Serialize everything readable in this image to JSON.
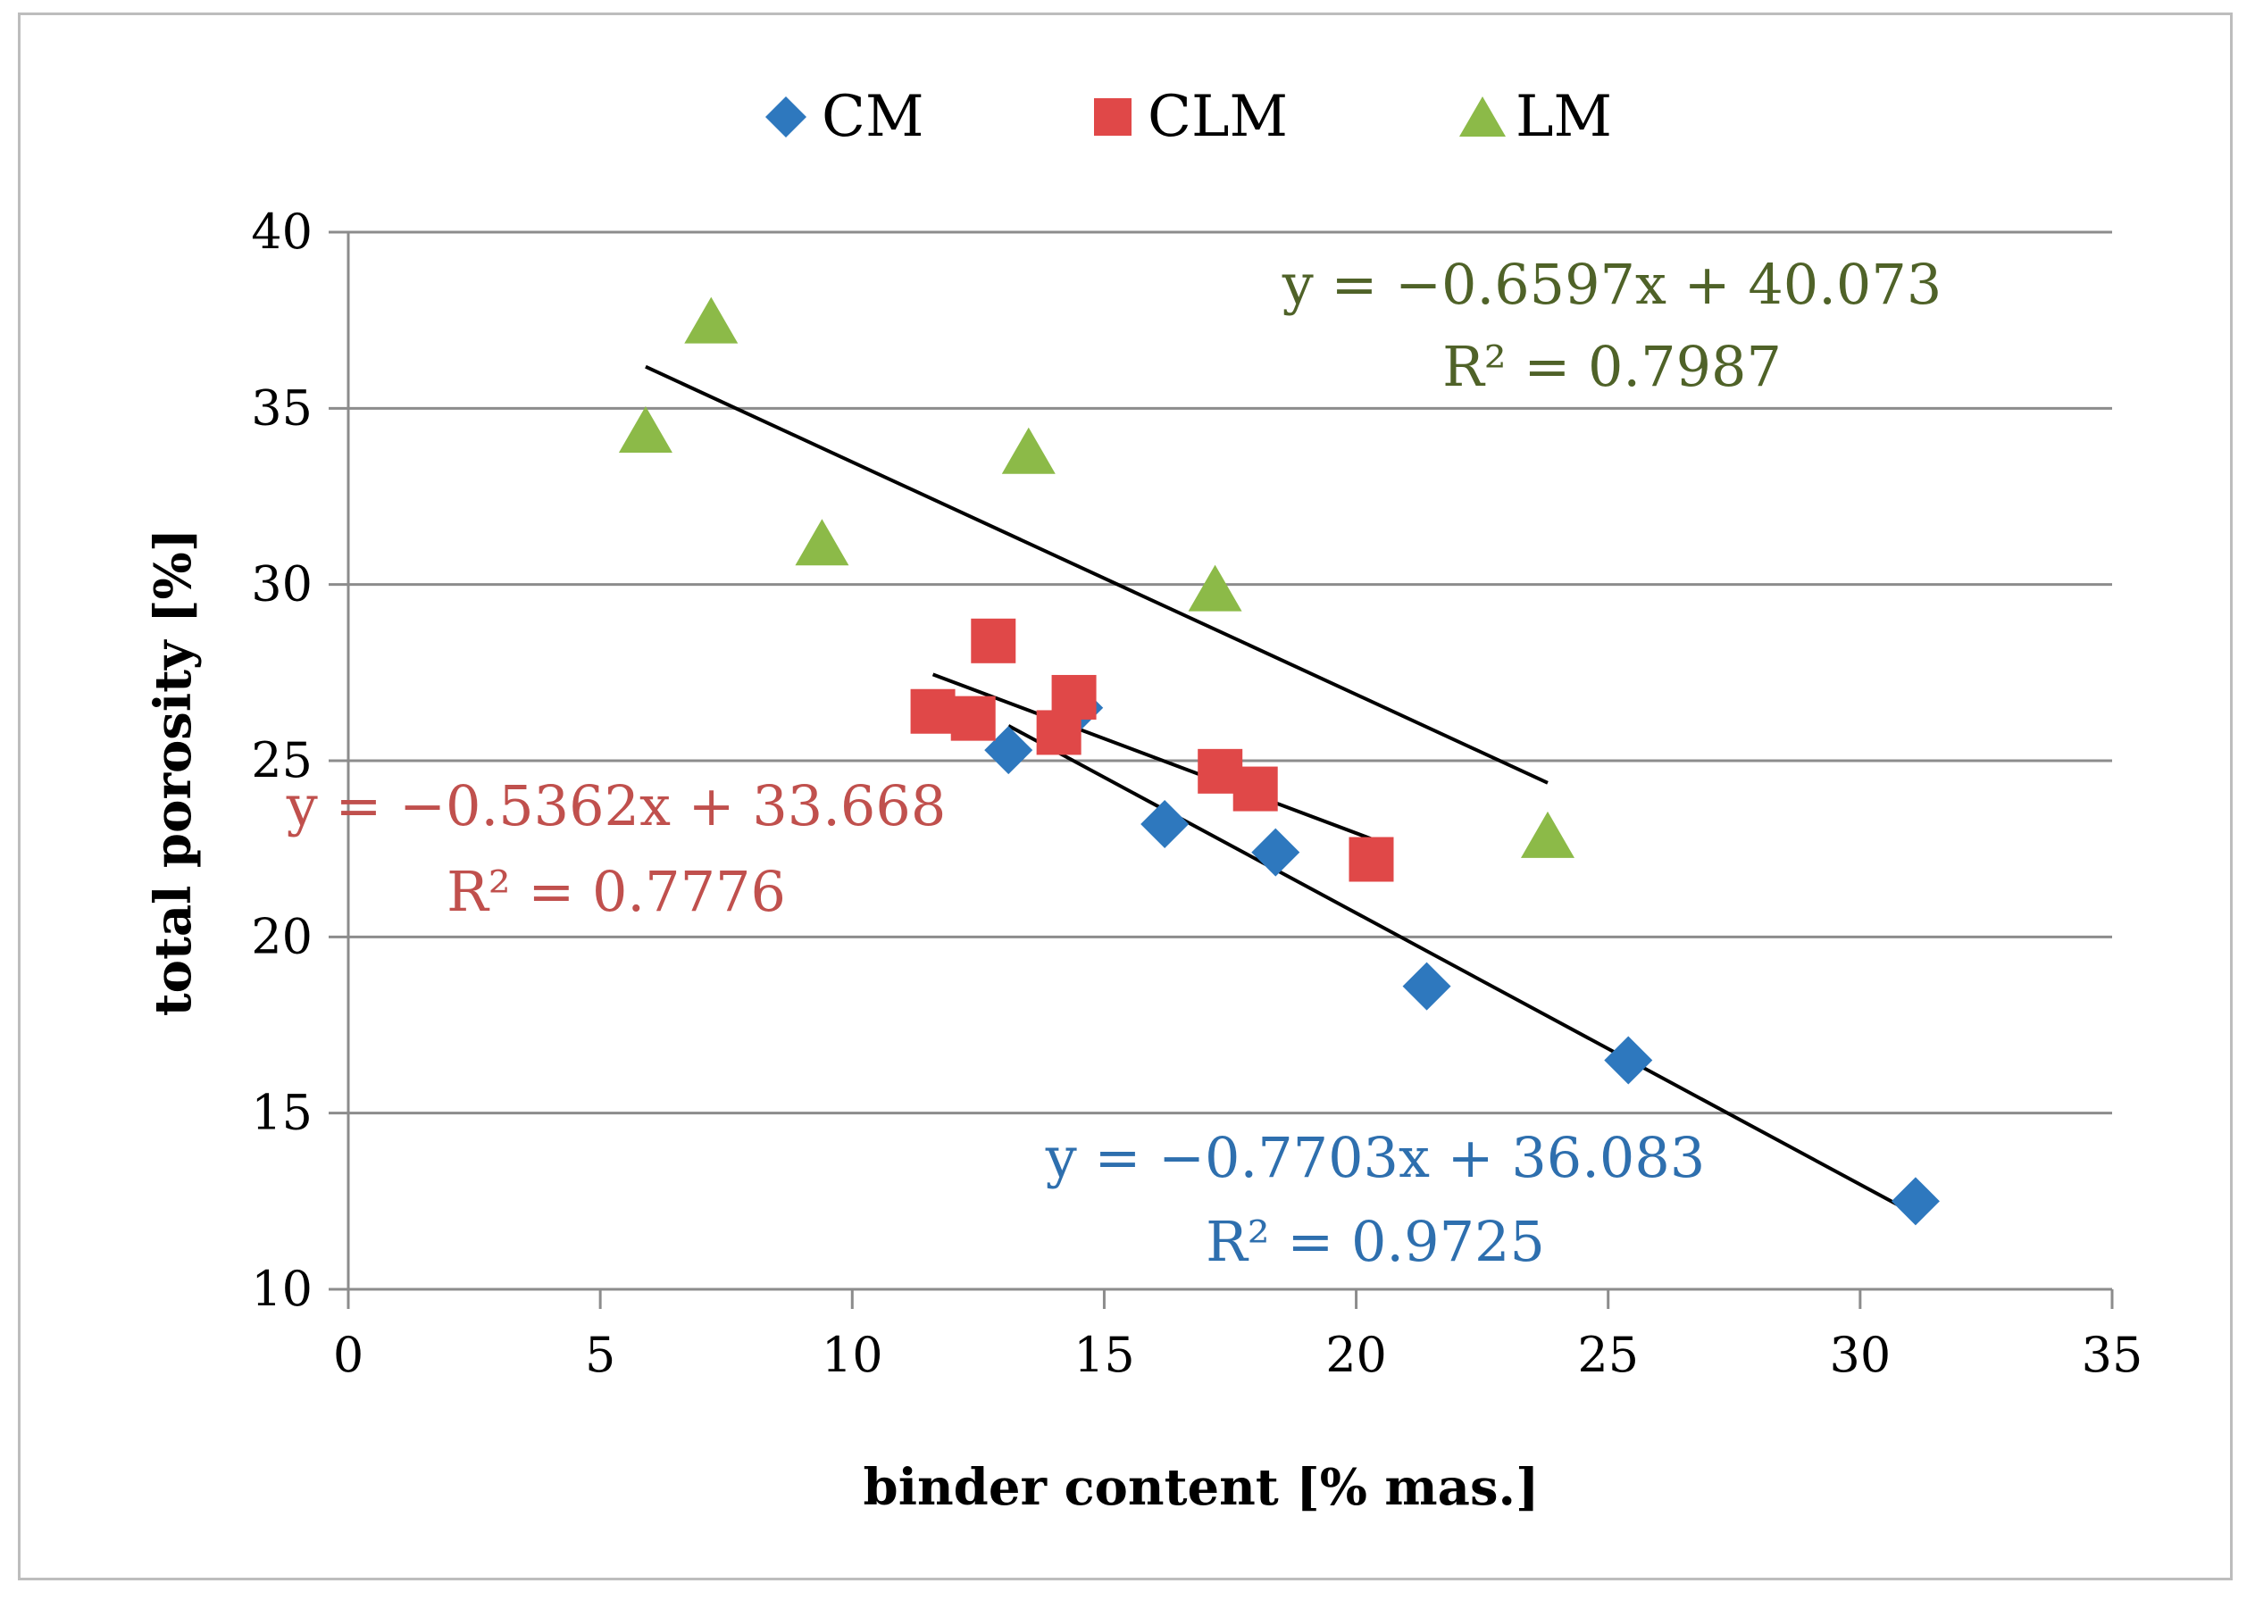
{
  "chart_data": {
    "type": "scatter",
    "title": "",
    "xlabel": "binder content [% mas.]",
    "ylabel": "total porosity [%]",
    "xlim": [
      0,
      35
    ],
    "ylim": [
      10,
      40
    ],
    "xticks": [
      0,
      5,
      10,
      15,
      20,
      25,
      30,
      35
    ],
    "yticks": [
      10,
      15,
      20,
      25,
      30,
      35,
      40
    ],
    "grid": "horizontal",
    "legend_position": "top",
    "series": [
      {
        "name": "CM",
        "marker": "diamond",
        "color": "#2e78be",
        "x": [
          13.1,
          14.5,
          16.2,
          18.4,
          21.4,
          25.4,
          31.1
        ],
        "y": [
          25.3,
          26.5,
          23.2,
          22.4,
          18.6,
          16.5,
          12.5
        ],
        "trendline": {
          "slope": -0.7703,
          "intercept": 36.083,
          "x_range": [
            13.1,
            31.1
          ],
          "equation": "y = −0.7703x + 36.083",
          "r2": "R² = 0.9725",
          "label_color": "#2e6fae"
        }
      },
      {
        "name": "CLM",
        "marker": "square",
        "color": "#e04848",
        "x": [
          11.6,
          12.4,
          12.8,
          14.1,
          14.4,
          17.3,
          18.0,
          20.3
        ],
        "y": [
          26.4,
          26.2,
          28.4,
          25.8,
          26.8,
          24.7,
          24.2,
          22.2
        ],
        "trendline": {
          "slope": -0.5362,
          "intercept": 33.668,
          "x_range": [
            11.6,
            20.3
          ],
          "equation": "y = −0.5362x + 33.668",
          "r2": "R² = 0.7776",
          "label_color": "#c0504d"
        }
      },
      {
        "name": "LM",
        "marker": "triangle",
        "color": "#8cba48",
        "x": [
          5.9,
          7.2,
          9.4,
          13.5,
          17.2,
          23.8
        ],
        "y": [
          34.4,
          37.5,
          31.2,
          33.8,
          29.9,
          22.9
        ],
        "trendline": {
          "slope": -0.6597,
          "intercept": 40.073,
          "x_range": [
            5.9,
            23.8
          ],
          "equation": "y = −0.6597x + 40.073",
          "r2": "R² = 0.7987",
          "label_color": "#4f6228"
        }
      }
    ]
  }
}
